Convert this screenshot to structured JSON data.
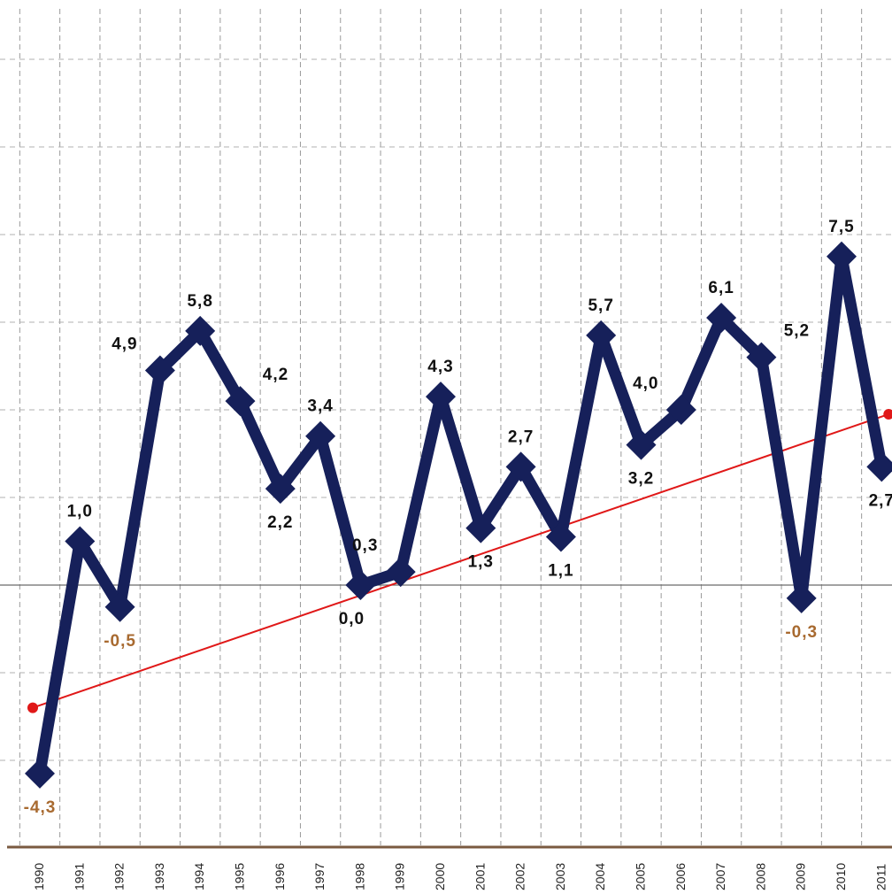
{
  "chart_data": {
    "type": "line",
    "title": "",
    "xlabel": "",
    "ylabel": "",
    "ylim": [
      -5,
      8
    ],
    "grid": true,
    "categories": [
      "1990",
      "1991",
      "1992",
      "1993",
      "1994",
      "1995",
      "1996",
      "1997",
      "1998",
      "1999",
      "2000",
      "2001",
      "2002",
      "2003",
      "2004",
      "2005",
      "2006",
      "2007",
      "2008",
      "2009",
      "2010",
      "2011"
    ],
    "series": [
      {
        "values": [
          -4.3,
          1.0,
          -0.5,
          4.9,
          5.8,
          4.2,
          2.2,
          3.4,
          0.0,
          0.3,
          4.3,
          1.3,
          2.7,
          1.1,
          5.7,
          3.2,
          4.0,
          6.1,
          5.2,
          -0.3,
          7.5,
          2.7
        ],
        "labels": [
          "-4,3",
          "1,0",
          "-0,5",
          "4,9",
          "5,8",
          "4,2",
          "2,2",
          "3,4",
          "0,0",
          "0,3",
          "4,3",
          "1,3",
          "2,7",
          "1,1",
          "5,7",
          "3,2",
          "4,0",
          "6,1",
          "5,2",
          "-0,3",
          "7,5",
          "2,7"
        ],
        "color": "#16205a"
      }
    ],
    "trend_line": {
      "color": "#e01818",
      "start": [
        "1990",
        -2.8
      ],
      "end": [
        "2011",
        3.9
      ]
    },
    "negative_label_color": "#a86a30"
  }
}
